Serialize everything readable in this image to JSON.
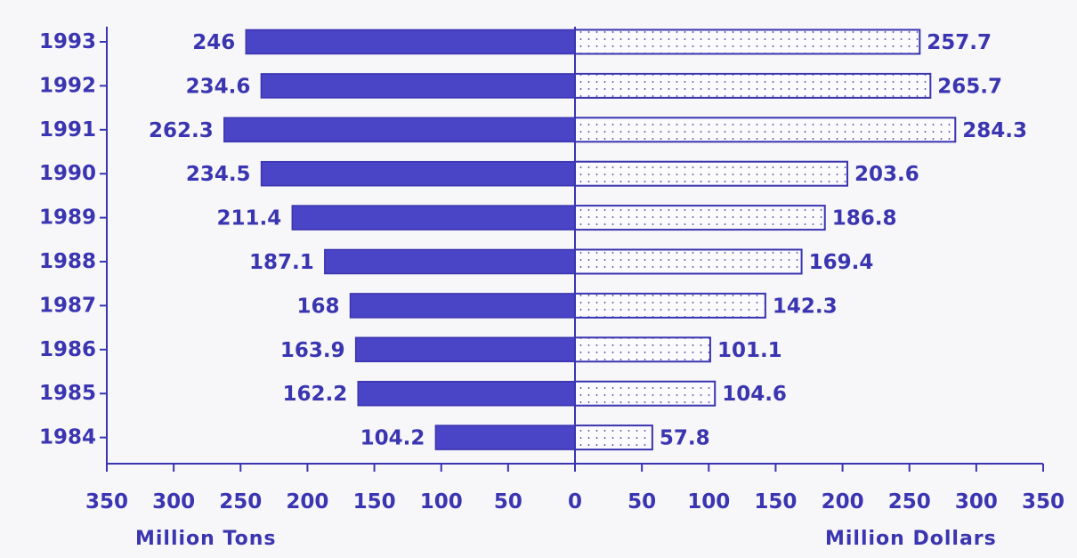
{
  "chart_data": {
    "type": "bar",
    "orientation": "horizontal",
    "layout": "back-to-back",
    "categories": [
      "1993",
      "1992",
      "1991",
      "1990",
      "1989",
      "1988",
      "1987",
      "1986",
      "1985",
      "1984"
    ],
    "series": [
      {
        "name": "Million Tons",
        "side": "left",
        "fill": "solid",
        "values": [
          246,
          234.6,
          262.3,
          234.5,
          211.4,
          187.1,
          168,
          163.9,
          162.2,
          104.2
        ],
        "labels": [
          "246",
          "234.6",
          "262.3",
          "234.5",
          "211.4",
          "187.1",
          "168",
          "163.9",
          "162.2",
          "104.2"
        ]
      },
      {
        "name": "Million Dollars",
        "side": "right",
        "fill": "dotted",
        "values": [
          257.7,
          265.7,
          284.3,
          203.6,
          186.8,
          169.4,
          142.3,
          101.1,
          104.6,
          57.8
        ],
        "labels": [
          "257.7",
          "265.7",
          "284.3",
          "203.6",
          "186.8",
          "169.4",
          "142.3",
          "101.1",
          "104.6",
          "57.8"
        ]
      }
    ],
    "xticks_left": [
      "350",
      "300",
      "250",
      "200",
      "150",
      "100",
      "50"
    ],
    "xticks_right": [
      "0",
      "50",
      "100",
      "150",
      "200",
      "250",
      "300",
      "350"
    ],
    "xlim_each_side": [
      0,
      350
    ],
    "xlabel_left": "Million Tons",
    "xlabel_right": "Million Dollars",
    "grid": false,
    "colors": {
      "ink": "#3a35b0",
      "bar": "#4a44c6",
      "background": "#f7f6f9"
    }
  }
}
